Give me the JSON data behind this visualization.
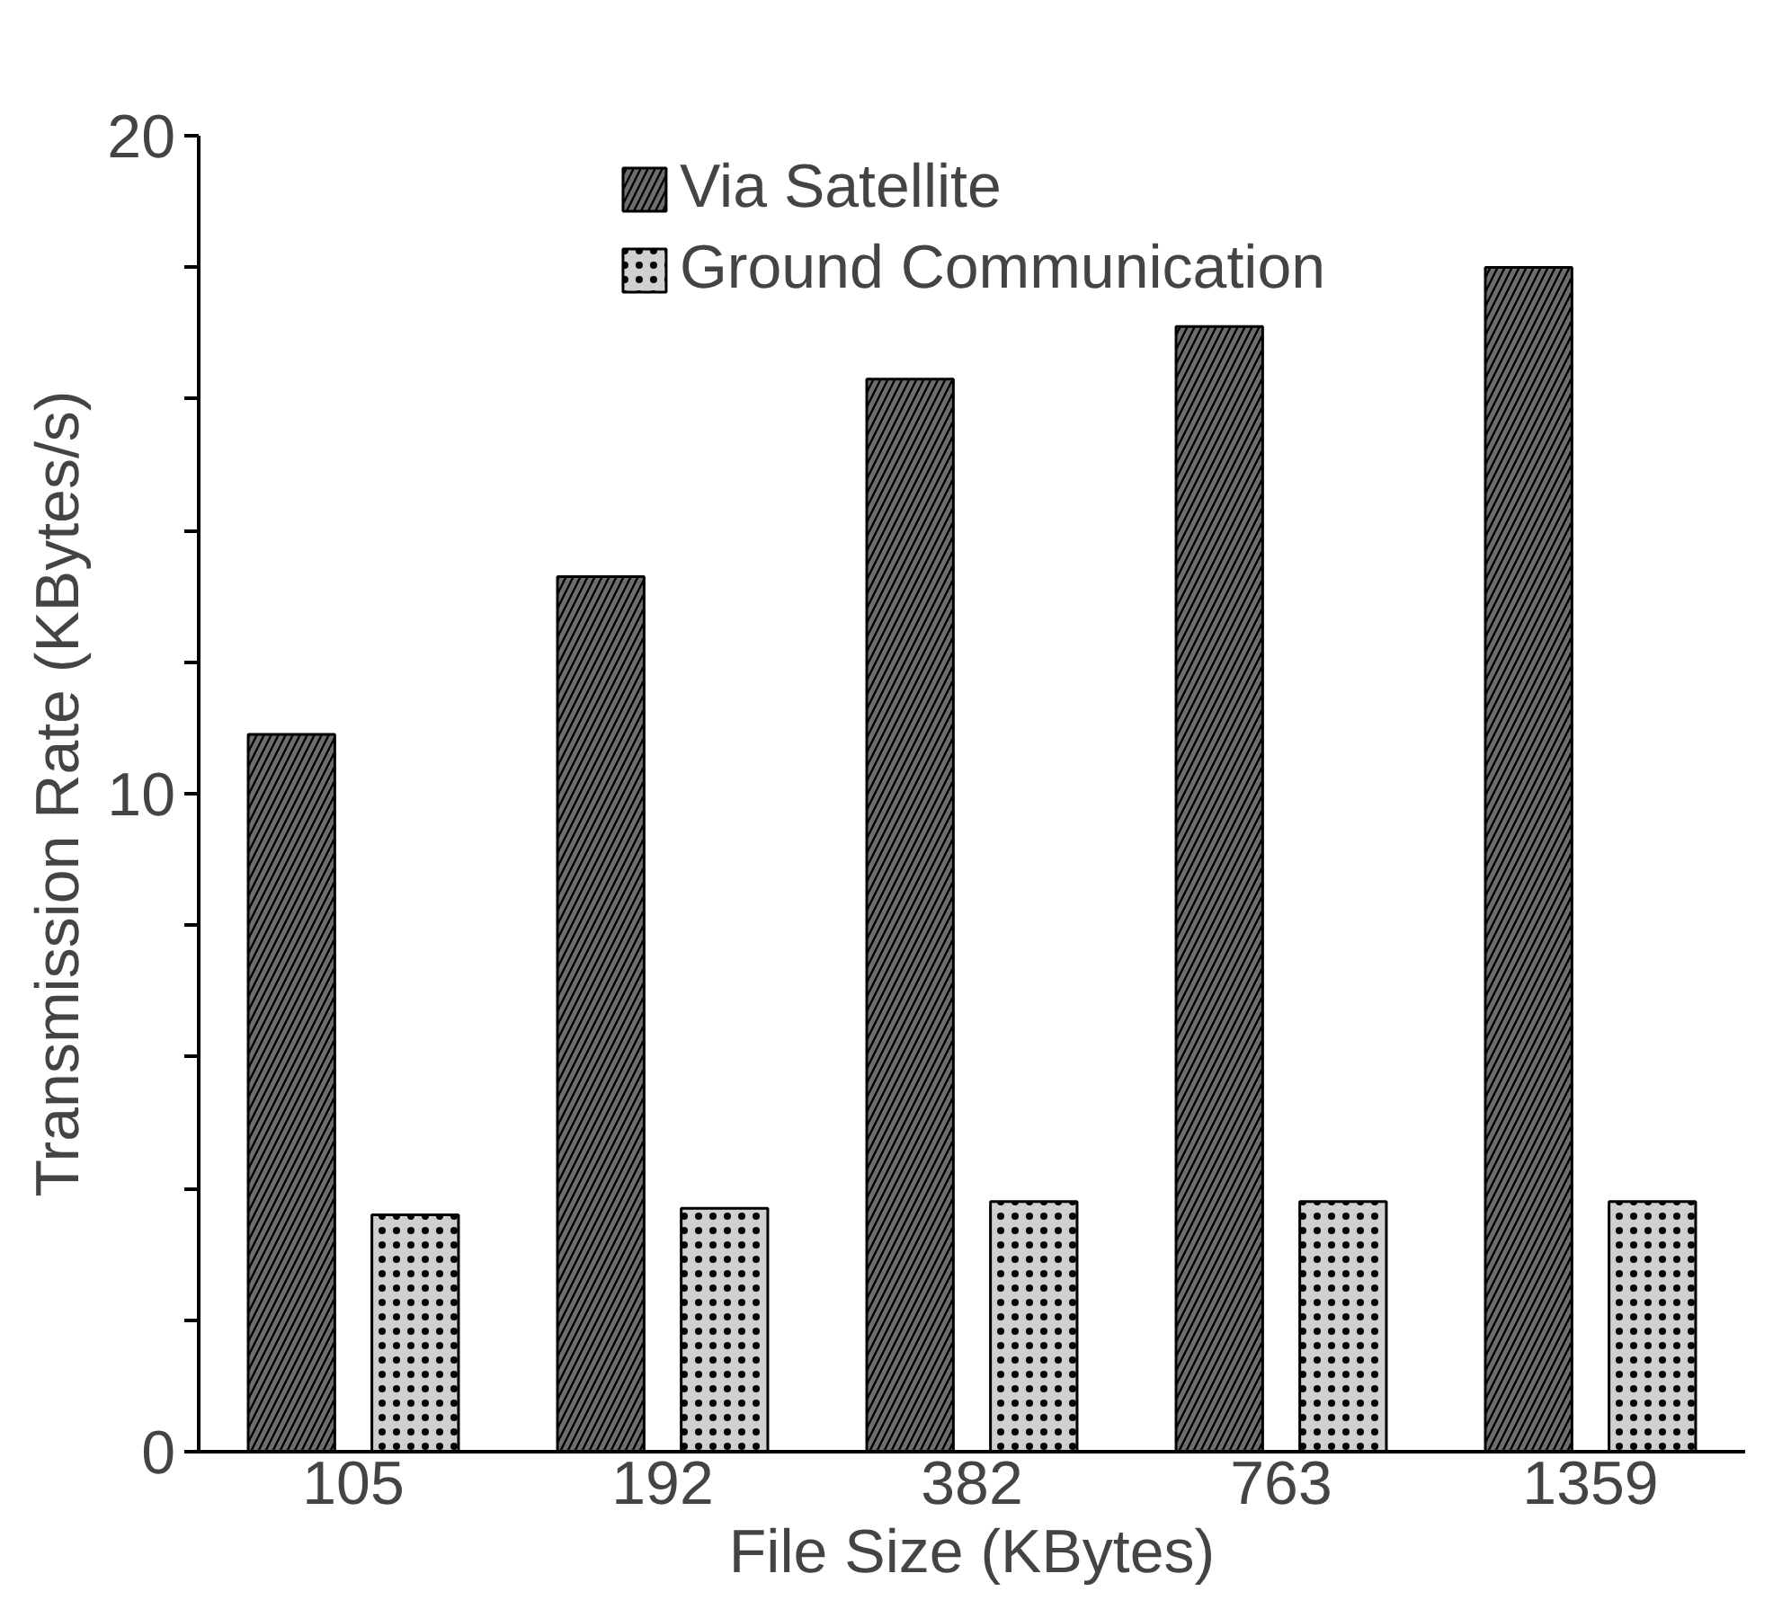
{
  "chart_data": {
    "type": "bar",
    "xlabel": "File Size (KBytes)",
    "ylabel": "Transmission Rate (KBytes/s)",
    "categories": [
      "105",
      "192",
      "382",
      "763",
      "1359"
    ],
    "series": [
      {
        "name": "Via Satellite",
        "color": "#6e6e6e",
        "values": [
          10.9,
          13.3,
          16.3,
          17.1,
          18.0
        ]
      },
      {
        "name": "Ground Communication",
        "color": "#d0d0d0",
        "values": [
          3.6,
          3.7,
          3.8,
          3.8,
          3.8
        ]
      }
    ],
    "ylim": [
      0,
      20
    ],
    "yticks": [
      0,
      {
        "value": 2,
        "label": null
      },
      {
        "value": 4,
        "label": null
      },
      {
        "value": 6,
        "label": null
      },
      {
        "value": 8,
        "label": null
      },
      10,
      {
        "value": 12,
        "label": null
      },
      {
        "value": 14,
        "label": null
      },
      {
        "value": 16,
        "label": null
      },
      {
        "value": 18,
        "label": null
      },
      20
    ],
    "grid": false,
    "legend": "top"
  }
}
